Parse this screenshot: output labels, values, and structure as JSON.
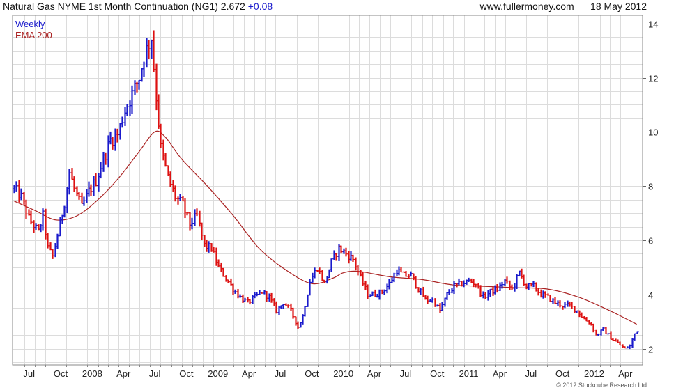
{
  "header": {
    "title": "Natural Gas NYME 1st Month Continuation (NG1)",
    "last": "2.672",
    "change": "+0.08",
    "site": "www.fullermoney.com",
    "date": "18 May 2012"
  },
  "legend": {
    "period": "Weekly",
    "ema": "EMA 200"
  },
  "footer": {
    "copyright": "© 2012 Stockcube Research Ltd"
  },
  "colors": {
    "up": "#1a1acc",
    "down": "#dd1111",
    "ema": "#aa2222",
    "grid": "#dcdcdc",
    "legend_period": "#1a1acc",
    "legend_ema": "#aa2222"
  },
  "chart_data": {
    "type": "ohlc-weekly",
    "ylim": [
      1.4,
      14.3
    ],
    "y_ticks": [
      2,
      4,
      6,
      8,
      10,
      12,
      14
    ],
    "x_tick_labels": [
      "Jul",
      "Oct",
      "2008",
      "Apr",
      "Jul",
      "Oct",
      "2009",
      "Apr",
      "Jul",
      "Oct",
      "2010",
      "Apr",
      "Jul",
      "Oct",
      "2011",
      "Apr",
      "Jul",
      "Oct",
      "2012",
      "Apr"
    ],
    "x_range": [
      "2007-06-01",
      "2012-05-31"
    ],
    "grid": true,
    "price_path": [
      [
        "2007-06-01",
        7.9
      ],
      [
        "2007-06-22",
        7.6
      ],
      [
        "2007-07-13",
        6.8
      ],
      [
        "2007-08-10",
        6.3
      ],
      [
        "2007-08-24",
        6.9
      ],
      [
        "2007-09-07",
        5.7
      ],
      [
        "2007-09-21",
        5.4
      ],
      [
        "2007-10-12",
        6.6
      ],
      [
        "2007-10-26",
        7.4
      ],
      [
        "2007-11-09",
        8.5
      ],
      [
        "2007-11-23",
        7.9
      ],
      [
        "2007-12-14",
        7.2
      ],
      [
        "2008-01-04",
        7.8
      ],
      [
        "2008-01-25",
        8.2
      ],
      [
        "2008-02-15",
        9.0
      ],
      [
        "2008-03-07",
        9.7
      ],
      [
        "2008-03-28",
        9.9
      ],
      [
        "2008-04-18",
        10.8
      ],
      [
        "2008-05-09",
        11.4
      ],
      [
        "2008-05-30",
        12.0
      ],
      [
        "2008-06-13",
        12.8
      ],
      [
        "2008-07-04",
        13.5
      ],
      [
        "2008-07-18",
        11.3
      ],
      [
        "2008-08-01",
        9.4
      ],
      [
        "2008-08-22",
        8.3
      ],
      [
        "2008-09-12",
        7.6
      ],
      [
        "2008-10-03",
        7.3
      ],
      [
        "2008-10-24",
        6.6
      ],
      [
        "2008-11-14",
        6.9
      ],
      [
        "2008-12-05",
        5.8
      ],
      [
        "2008-12-26",
        5.7
      ],
      [
        "2009-01-16",
        5.0
      ],
      [
        "2009-02-06",
        4.6
      ],
      [
        "2009-02-27",
        4.2
      ],
      [
        "2009-03-20",
        3.9
      ],
      [
        "2009-04-10",
        3.7
      ],
      [
        "2009-05-01",
        3.9
      ],
      [
        "2009-05-22",
        4.1
      ],
      [
        "2009-06-12",
        3.9
      ],
      [
        "2009-07-03",
        3.4
      ],
      [
        "2009-07-24",
        3.7
      ],
      [
        "2009-08-14",
        3.4
      ],
      [
        "2009-09-04",
        2.8
      ],
      [
        "2009-09-18",
        3.2
      ],
      [
        "2009-10-09",
        4.5
      ],
      [
        "2009-10-30",
        5.0
      ],
      [
        "2009-11-20",
        4.4
      ],
      [
        "2009-12-11",
        5.2
      ],
      [
        "2010-01-01",
        5.7
      ],
      [
        "2010-01-22",
        5.5
      ],
      [
        "2010-02-12",
        5.3
      ],
      [
        "2010-03-05",
        4.6
      ],
      [
        "2010-03-26",
        4.0
      ],
      [
        "2010-04-16",
        4.0
      ],
      [
        "2010-05-07",
        4.1
      ],
      [
        "2010-05-28",
        4.4
      ],
      [
        "2010-06-18",
        4.9
      ],
      [
        "2010-07-09",
        4.7
      ],
      [
        "2010-07-30",
        4.7
      ],
      [
        "2010-08-20",
        4.2
      ],
      [
        "2010-09-10",
        3.8
      ],
      [
        "2010-10-01",
        3.8
      ],
      [
        "2010-10-22",
        3.4
      ],
      [
        "2010-11-12",
        4.0
      ],
      [
        "2010-12-03",
        4.3
      ],
      [
        "2010-12-24",
        4.4
      ],
      [
        "2011-01-14",
        4.5
      ],
      [
        "2011-02-04",
        4.4
      ],
      [
        "2011-02-25",
        3.9
      ],
      [
        "2011-03-18",
        4.1
      ],
      [
        "2011-04-08",
        4.2
      ],
      [
        "2011-04-29",
        4.5
      ],
      [
        "2011-05-20",
        4.2
      ],
      [
        "2011-06-10",
        4.8
      ],
      [
        "2011-07-01",
        4.3
      ],
      [
        "2011-07-22",
        4.3
      ],
      [
        "2011-08-12",
        4.0
      ],
      [
        "2011-09-02",
        3.9
      ],
      [
        "2011-09-23",
        3.7
      ],
      [
        "2011-10-14",
        3.6
      ],
      [
        "2011-11-04",
        3.6
      ],
      [
        "2011-11-25",
        3.4
      ],
      [
        "2011-12-16",
        3.1
      ],
      [
        "2012-01-06",
        2.9
      ],
      [
        "2012-01-20",
        2.5
      ],
      [
        "2012-02-10",
        2.7
      ],
      [
        "2012-03-02",
        2.4
      ],
      [
        "2012-03-23",
        2.2
      ],
      [
        "2012-04-13",
        2.0
      ],
      [
        "2012-04-27",
        2.1
      ],
      [
        "2012-05-11",
        2.55
      ],
      [
        "2012-05-18",
        2.67
      ]
    ],
    "ema_path": [
      [
        "2007-06-01",
        7.45
      ],
      [
        "2007-08-01",
        7.1
      ],
      [
        "2007-10-01",
        6.75
      ],
      [
        "2007-12-01",
        6.9
      ],
      [
        "2008-02-01",
        7.5
      ],
      [
        "2008-04-01",
        8.3
      ],
      [
        "2008-06-01",
        9.3
      ],
      [
        "2008-07-15",
        10.0
      ],
      [
        "2008-08-15",
        9.8
      ],
      [
        "2008-10-01",
        9.0
      ],
      [
        "2008-12-15",
        8.0
      ],
      [
        "2009-03-01",
        6.9
      ],
      [
        "2009-05-15",
        5.7
      ],
      [
        "2009-08-01",
        4.9
      ],
      [
        "2009-10-15",
        4.4
      ],
      [
        "2009-12-15",
        4.6
      ],
      [
        "2010-01-15",
        4.8
      ],
      [
        "2010-03-01",
        4.85
      ],
      [
        "2010-06-01",
        4.65
      ],
      [
        "2010-09-01",
        4.55
      ],
      [
        "2010-12-01",
        4.35
      ],
      [
        "2011-03-01",
        4.3
      ],
      [
        "2011-06-01",
        4.25
      ],
      [
        "2011-09-01",
        4.2
      ],
      [
        "2011-12-01",
        3.9
      ],
      [
        "2012-03-01",
        3.4
      ],
      [
        "2012-05-18",
        2.9
      ]
    ]
  }
}
